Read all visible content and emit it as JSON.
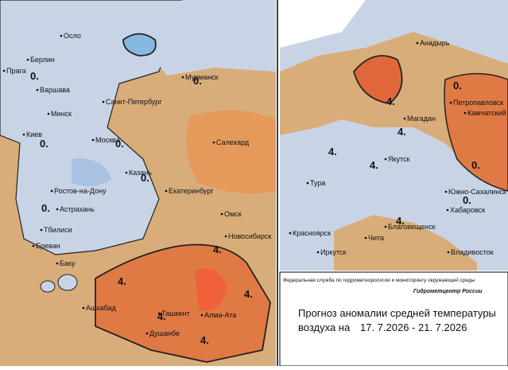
{
  "header": {
    "agency": "Федеральная служба по гидрометеорологии и мониторингу окружающей среды",
    "center": "Гидрометцентр России"
  },
  "title": {
    "line1": "Прогноз аномалии средней температуры",
    "line2": "воздуха на",
    "dates": "17. 7.2026 - 21. 7.2026"
  },
  "cities": [
    "Осло",
    "Берлин",
    "Прага",
    "Варшава",
    "Мурманск",
    "Санкт-Петербург",
    "Минск",
    "Киев",
    "Москва",
    "Казань",
    "Ростов-на-Дону",
    "Екатеринбург",
    "Астрахань",
    "Салехард",
    "Омск",
    "Новосибирск",
    "Тбилиси",
    "Ереван",
    "Баку",
    "Ашхабад",
    "Ташкент",
    "Алма-Ата",
    "Душанбе",
    "Анадырь",
    "Петропавловск",
    "Камчатский",
    "Магадан",
    "Якутск",
    "Тура",
    "Южно-Сахалинск",
    "Хабаровск",
    "Благовещенск",
    "Красноярск",
    "Чита",
    "Иркутск",
    "Владивосток"
  ],
  "contour_labels": [
    "0.",
    "0.",
    "0.",
    "0.",
    "0.",
    "0.",
    "4.",
    "4.",
    "4.",
    "4.",
    "4.",
    "4.",
    "0.",
    "0.",
    "0.",
    "4.",
    "4.",
    "4.",
    "4."
  ]
}
